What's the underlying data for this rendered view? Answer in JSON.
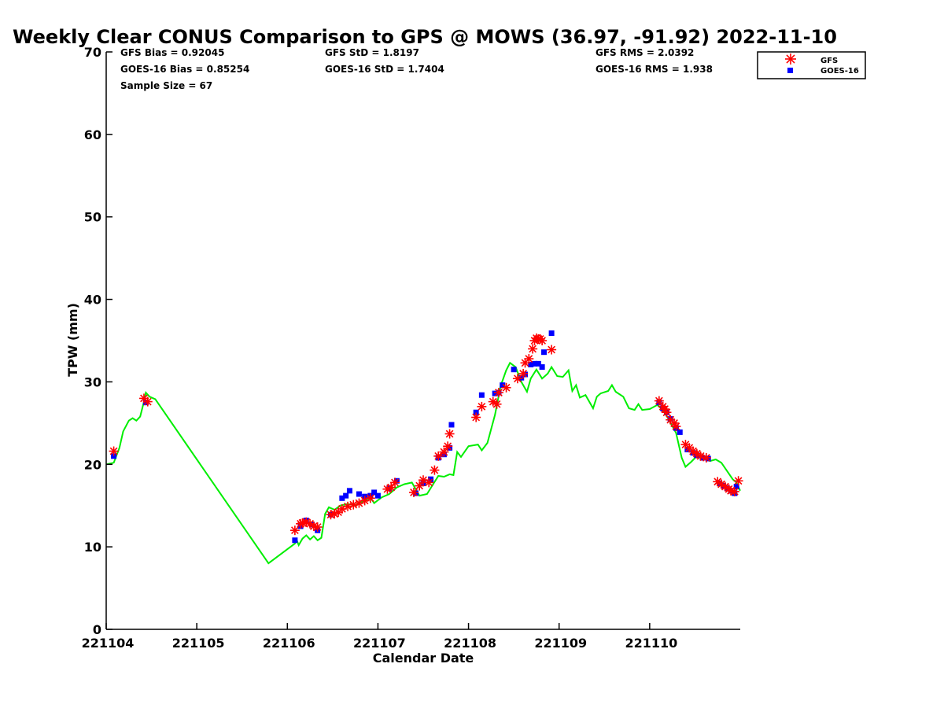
{
  "chart_data": {
    "type": "scatter",
    "title": "Weekly Clear CONUS Comparison to GPS @ MOWS (36.97, -91.92) 2022-11-10",
    "xlabel": "Calendar Date",
    "ylabel": "TPW (mm)",
    "xlim": [
      "221104",
      "221111"
    ],
    "ylim": [
      0,
      70
    ],
    "x_ticks": [
      "221104",
      "221105",
      "221106",
      "221107",
      "221108",
      "221109",
      "221110"
    ],
    "y_ticks": [
      0,
      10,
      20,
      30,
      40,
      50,
      60,
      70
    ],
    "grid": false,
    "legend_position": "top-right",
    "stats": {
      "gfs_bias": "GFS Bias = 0.92045",
      "goes_bias": "GOES-16 Bias = 0.85254",
      "sample_size": "Sample Size = 67",
      "gfs_std": "GFS StD = 1.8197",
      "goes_std": "GOES-16 StD = 1.7404",
      "gfs_rms": "GFS RMS = 2.0392",
      "goes_rms": "GOES-16 RMS = 1.938"
    },
    "series": [
      {
        "name": "GFS",
        "color": "#ff0000",
        "marker": "asterisk",
        "points": [
          [
            "2022-11-04 02:00",
            21.6
          ],
          [
            "2022-11-04 10:00",
            28.0
          ],
          [
            "2022-11-04 11:00",
            27.6
          ],
          [
            "2022-11-06 02:00",
            12.0
          ],
          [
            "2022-11-06 03:30",
            12.8
          ],
          [
            "2022-11-06 04:00",
            12.9
          ],
          [
            "2022-11-06 05:00",
            13.0
          ],
          [
            "2022-11-06 06:00",
            12.8
          ],
          [
            "2022-11-06 07:00",
            12.5
          ],
          [
            "2022-11-06 08:00",
            12.4
          ],
          [
            "2022-11-06 11:30",
            13.9
          ],
          [
            "2022-11-06 12:30",
            14.0
          ],
          [
            "2022-11-06 13:30",
            14.2
          ],
          [
            "2022-11-06 14:30",
            14.6
          ],
          [
            "2022-11-06 16:00",
            14.9
          ],
          [
            "2022-11-06 17:30",
            15.1
          ],
          [
            "2022-11-06 19:00",
            15.3
          ],
          [
            "2022-11-06 20:30",
            15.6
          ],
          [
            "2022-11-06 22:00",
            15.9
          ],
          [
            "2022-11-07 02:30",
            17.0
          ],
          [
            "2022-11-07 03:30",
            17.2
          ],
          [
            "2022-11-07 04:30",
            17.8
          ],
          [
            "2022-11-07 09:30",
            16.6
          ],
          [
            "2022-11-07 11:00",
            17.4
          ],
          [
            "2022-11-07 12:00",
            18.1
          ],
          [
            "2022-11-07 13:30",
            17.8
          ],
          [
            "2022-11-07 15:00",
            19.3
          ],
          [
            "2022-11-07 16:00",
            21.0
          ],
          [
            "2022-11-07 17:30",
            21.5
          ],
          [
            "2022-11-07 18:30",
            22.2
          ],
          [
            "2022-11-07 19:00",
            23.7
          ],
          [
            "2022-11-08 02:00",
            25.7
          ],
          [
            "2022-11-08 03:30",
            27.0
          ],
          [
            "2022-11-08 06:30",
            27.6
          ],
          [
            "2022-11-08 07:30",
            27.3
          ],
          [
            "2022-11-08 08:00",
            28.7
          ],
          [
            "2022-11-08 10:00",
            29.3
          ],
          [
            "2022-11-08 13:00",
            30.4
          ],
          [
            "2022-11-08 14:30",
            31.0
          ],
          [
            "2022-11-08 15:00",
            32.3
          ],
          [
            "2022-11-08 16:00",
            32.8
          ],
          [
            "2022-11-08 17:00",
            34.0
          ],
          [
            "2022-11-08 17:30",
            35.0
          ],
          [
            "2022-11-08 18:00",
            35.3
          ],
          [
            "2022-11-08 18:30",
            35.2
          ],
          [
            "2022-11-08 19:00",
            35.2
          ],
          [
            "2022-11-08 19:30",
            35.0
          ],
          [
            "2022-11-08 22:00",
            33.9
          ],
          [
            "2022-11-10 02:30",
            27.7
          ],
          [
            "2022-11-10 03:30",
            27.0
          ],
          [
            "2022-11-10 04:00",
            26.7
          ],
          [
            "2022-11-10 04:30",
            26.3
          ],
          [
            "2022-11-10 05:30",
            25.4
          ],
          [
            "2022-11-10 06:30",
            25.0
          ],
          [
            "2022-11-10 07:00",
            24.6
          ],
          [
            "2022-11-10 09:30",
            22.4
          ],
          [
            "2022-11-10 10:30",
            22.0
          ],
          [
            "2022-11-10 11:30",
            21.6
          ],
          [
            "2022-11-10 12:30",
            21.3
          ],
          [
            "2022-11-10 13:30",
            21.0
          ],
          [
            "2022-11-10 15:00",
            20.8
          ],
          [
            "2022-11-10 18:00",
            17.9
          ],
          [
            "2022-11-10 19:00",
            17.6
          ],
          [
            "2022-11-10 20:00",
            17.3
          ],
          [
            "2022-11-10 21:00",
            17.0
          ],
          [
            "2022-11-10 21:30",
            16.8
          ],
          [
            "2022-11-10 22:30",
            16.7
          ],
          [
            "2022-11-10 23:30",
            18.0
          ]
        ]
      },
      {
        "name": "GOES-16",
        "color": "#0000ff",
        "marker": "square",
        "points": [
          [
            "2022-11-04 02:00",
            21.0
          ],
          [
            "2022-11-04 10:30",
            27.5
          ],
          [
            "2022-11-06 02:00",
            10.8
          ],
          [
            "2022-11-06 03:30",
            12.5
          ],
          [
            "2022-11-06 05:00",
            13.2
          ],
          [
            "2022-11-06 06:30",
            12.7
          ],
          [
            "2022-11-06 08:00",
            12.0
          ],
          [
            "2022-11-06 11:30",
            13.9
          ],
          [
            "2022-11-06 14:30",
            15.9
          ],
          [
            "2022-11-06 15:30",
            16.2
          ],
          [
            "2022-11-06 16:30",
            16.8
          ],
          [
            "2022-11-06 19:00",
            16.4
          ],
          [
            "2022-11-06 20:30",
            16.1
          ],
          [
            "2022-11-06 22:00",
            16.2
          ],
          [
            "2022-11-06 23:00",
            16.6
          ],
          [
            "2022-11-07 00:00",
            16.2
          ],
          [
            "2022-11-07 03:00",
            17.1
          ],
          [
            "2022-11-07 05:00",
            18.0
          ],
          [
            "2022-11-07 10:00",
            16.5
          ],
          [
            "2022-11-07 12:00",
            17.7
          ],
          [
            "2022-11-07 14:00",
            18.2
          ],
          [
            "2022-11-07 16:00",
            20.8
          ],
          [
            "2022-11-07 17:30",
            21.2
          ],
          [
            "2022-11-07 19:00",
            22.0
          ],
          [
            "2022-11-07 19:30",
            24.8
          ],
          [
            "2022-11-08 02:00",
            26.3
          ],
          [
            "2022-11-08 03:30",
            28.4
          ],
          [
            "2022-11-08 07:00",
            28.6
          ],
          [
            "2022-11-08 08:00",
            28.7
          ],
          [
            "2022-11-08 09:00",
            29.6
          ],
          [
            "2022-11-08 12:00",
            31.5
          ],
          [
            "2022-11-08 14:00",
            30.5
          ],
          [
            "2022-11-08 15:00",
            30.9
          ],
          [
            "2022-11-08 16:30",
            32.1
          ],
          [
            "2022-11-08 17:30",
            32.2
          ],
          [
            "2022-11-08 18:30",
            32.2
          ],
          [
            "2022-11-08 19:30",
            31.8
          ],
          [
            "2022-11-08 20:00",
            33.6
          ],
          [
            "2022-11-08 22:00",
            35.9
          ],
          [
            "2022-11-10 02:30",
            27.5
          ],
          [
            "2022-11-10 03:30",
            26.8
          ],
          [
            "2022-11-10 04:30",
            26.3
          ],
          [
            "2022-11-10 05:30",
            25.5
          ],
          [
            "2022-11-10 07:00",
            24.4
          ],
          [
            "2022-11-10 08:00",
            23.9
          ],
          [
            "2022-11-10 10:00",
            21.8
          ],
          [
            "2022-11-10 11:30",
            21.4
          ],
          [
            "2022-11-10 12:30",
            21.1
          ],
          [
            "2022-11-10 14:00",
            20.8
          ],
          [
            "2022-11-10 15:30",
            20.7
          ],
          [
            "2022-11-10 18:30",
            17.7
          ],
          [
            "2022-11-10 19:30",
            17.4
          ],
          [
            "2022-11-10 20:30",
            17.1
          ],
          [
            "2022-11-10 21:30",
            16.8
          ],
          [
            "2022-11-10 22:30",
            16.5
          ],
          [
            "2022-11-10 23:00",
            17.3
          ]
        ]
      },
      {
        "color": "#00ee00",
        "marker": "line",
        "points": [
          [
            "2022-11-04 00:00",
            20.0
          ],
          [
            "2022-11-04 02:00",
            20.2
          ],
          [
            "2022-11-04 03:30",
            22.0
          ],
          [
            "2022-11-04 04:30",
            24.0
          ],
          [
            "2022-11-04 06:00",
            25.3
          ],
          [
            "2022-11-04 07:00",
            25.6
          ],
          [
            "2022-11-04 08:00",
            25.3
          ],
          [
            "2022-11-04 09:00",
            25.8
          ],
          [
            "2022-11-04 10:00",
            27.6
          ],
          [
            "2022-11-04 10:30",
            28.7
          ],
          [
            "2022-11-04 11:30",
            28.2
          ],
          [
            "2022-11-04 13:00",
            27.9
          ],
          [
            "2022-11-05 19:00",
            8.0
          ],
          [
            "2022-11-06 02:00",
            10.4
          ],
          [
            "2022-11-06 02:30",
            10.8
          ],
          [
            "2022-11-06 03:00",
            10.2
          ],
          [
            "2022-11-06 04:00",
            11.0
          ],
          [
            "2022-11-06 05:00",
            11.4
          ],
          [
            "2022-11-06 06:00",
            10.9
          ],
          [
            "2022-11-06 07:00",
            11.3
          ],
          [
            "2022-11-06 08:00",
            10.8
          ],
          [
            "2022-11-06 09:00",
            11.1
          ],
          [
            "2022-11-06 10:00",
            14.0
          ],
          [
            "2022-11-06 11:00",
            14.8
          ],
          [
            "2022-11-06 12:30",
            14.5
          ],
          [
            "2022-11-06 14:00",
            15.0
          ],
          [
            "2022-11-06 16:00",
            15.2
          ],
          [
            "2022-11-06 18:00",
            15.0
          ],
          [
            "2022-11-06 20:00",
            15.5
          ],
          [
            "2022-11-06 22:00",
            16.0
          ],
          [
            "2022-11-06 23:00",
            15.3
          ],
          [
            "2022-11-07 01:00",
            16.0
          ],
          [
            "2022-11-07 03:00",
            16.4
          ],
          [
            "2022-11-07 05:00",
            17.2
          ],
          [
            "2022-11-07 07:00",
            17.6
          ],
          [
            "2022-11-07 09:00",
            17.8
          ],
          [
            "2022-11-07 11:00",
            16.2
          ],
          [
            "2022-11-07 13:00",
            16.4
          ],
          [
            "2022-11-07 14:30",
            17.5
          ],
          [
            "2022-11-07 16:00",
            18.6
          ],
          [
            "2022-11-07 17:30",
            18.5
          ],
          [
            "2022-11-07 19:00",
            18.8
          ],
          [
            "2022-11-07 20:00",
            18.7
          ],
          [
            "2022-11-07 21:00",
            21.5
          ],
          [
            "2022-11-07 22:00",
            20.9
          ],
          [
            "2022-11-08 00:00",
            22.2
          ],
          [
            "2022-11-08 02:30",
            22.4
          ],
          [
            "2022-11-08 03:30",
            21.7
          ],
          [
            "2022-11-08 05:00",
            22.6
          ],
          [
            "2022-11-08 07:00",
            26.0
          ],
          [
            "2022-11-08 08:30",
            29.5
          ],
          [
            "2022-11-08 10:00",
            31.4
          ],
          [
            "2022-11-08 11:00",
            32.3
          ],
          [
            "2022-11-08 12:30",
            31.8
          ],
          [
            "2022-11-08 14:00",
            30.0
          ],
          [
            "2022-11-08 15:30",
            28.8
          ],
          [
            "2022-11-08 16:30",
            30.4
          ],
          [
            "2022-11-08 18:00",
            31.5
          ],
          [
            "2022-11-08 19:30",
            30.4
          ],
          [
            "2022-11-08 21:00",
            31.0
          ],
          [
            "2022-11-08 22:00",
            31.8
          ],
          [
            "2022-11-08 23:30",
            30.7
          ],
          [
            "2022-11-09 01:00",
            30.6
          ],
          [
            "2022-11-09 02:30",
            31.4
          ],
          [
            "2022-11-09 03:30",
            28.9
          ],
          [
            "2022-11-09 04:30",
            29.6
          ],
          [
            "2022-11-09 05:30",
            28.1
          ],
          [
            "2022-11-09 07:00",
            28.4
          ],
          [
            "2022-11-09 09:00",
            26.8
          ],
          [
            "2022-11-09 10:00",
            28.2
          ],
          [
            "2022-11-09 11:00",
            28.6
          ],
          [
            "2022-11-09 13:00",
            28.9
          ],
          [
            "2022-11-09 14:00",
            29.6
          ],
          [
            "2022-11-09 15:00",
            28.8
          ],
          [
            "2022-11-09 17:00",
            28.2
          ],
          [
            "2022-11-09 18:30",
            26.8
          ],
          [
            "2022-11-09 20:00",
            26.6
          ],
          [
            "2022-11-09 21:00",
            27.3
          ],
          [
            "2022-11-09 22:00",
            26.6
          ],
          [
            "2022-11-10 00:00",
            26.7
          ],
          [
            "2022-11-10 02:00",
            27.2
          ],
          [
            "2022-11-10 03:30",
            26.6
          ],
          [
            "2022-11-10 05:00",
            25.5
          ],
          [
            "2022-11-10 07:00",
            23.8
          ],
          [
            "2022-11-10 08:30",
            20.8
          ],
          [
            "2022-11-10 09:30",
            19.7
          ],
          [
            "2022-11-10 11:00",
            20.3
          ],
          [
            "2022-11-10 12:30",
            21.0
          ],
          [
            "2022-11-10 14:00",
            20.8
          ],
          [
            "2022-11-10 16:00",
            20.4
          ],
          [
            "2022-11-10 17:30",
            20.6
          ],
          [
            "2022-11-10 19:00",
            20.2
          ],
          [
            "2022-11-10 20:30",
            19.2
          ],
          [
            "2022-11-10 22:00",
            18.2
          ],
          [
            "2022-11-10 23:00",
            17.8
          ],
          [
            "2022-11-10 23:59",
            16.8
          ]
        ]
      }
    ]
  }
}
